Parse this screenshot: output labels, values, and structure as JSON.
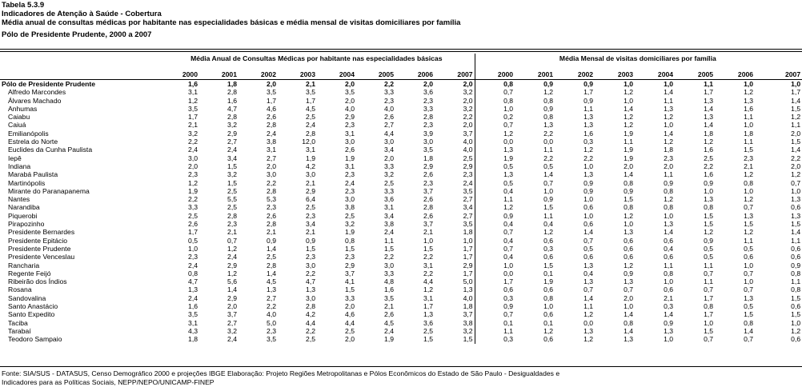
{
  "header": {
    "table_id": "Tabela 5.3.9",
    "subtitle": "Indicadores de Atenção à Saúde - Cobertura",
    "title": "Média anual de consultas médicas por habitante nas especialidades básicas e média mensal de visitas domiciliares por família",
    "region": "Pólo de Presidente Prudente, 2000 a 2007"
  },
  "table": {
    "group1": "Média Anual de Consultas Médicas por habitante nas especialidades básicas",
    "group2": "Média Mensal de visitas domiciliares por família",
    "years": [
      "2000",
      "2001",
      "2002",
      "2003",
      "2004",
      "2005",
      "2006",
      "2007"
    ],
    "rows": [
      {
        "name": "Pólo de Presidente Prudente",
        "c": [
          "1,6",
          "1,8",
          "2,0",
          "2,1",
          "2,0",
          "2,2",
          "2,0",
          "2,0"
        ],
        "v": [
          "0,8",
          "0,9",
          "0,9",
          "1,0",
          "1,0",
          "1,1",
          "1,0",
          "1,0"
        ]
      },
      {
        "name": "Alfredo Marcondes",
        "c": [
          "3,1",
          "2,8",
          "3,5",
          "3,5",
          "3,5",
          "3,3",
          "3,6",
          "3,2"
        ],
        "v": [
          "0,7",
          "1,2",
          "1,7",
          "1,2",
          "1,4",
          "1,7",
          "1,2",
          "1,7"
        ]
      },
      {
        "name": "Álvares Machado",
        "c": [
          "1,2",
          "1,6",
          "1,7",
          "1,7",
          "2,0",
          "2,3",
          "2,3",
          "2,0"
        ],
        "v": [
          "0,8",
          "0,8",
          "0,9",
          "1,0",
          "1,1",
          "1,3",
          "1,3",
          "1,4"
        ]
      },
      {
        "name": "Anhumas",
        "c": [
          "3,5",
          "4,7",
          "4,6",
          "4,5",
          "4,0",
          "4,0",
          "3,3",
          "3,2"
        ],
        "v": [
          "1,0",
          "0,9",
          "1,1",
          "1,4",
          "1,3",
          "1,4",
          "1,6",
          "1,5"
        ]
      },
      {
        "name": "Caiabu",
        "c": [
          "1,7",
          "2,8",
          "2,6",
          "2,5",
          "2,9",
          "2,6",
          "2,8",
          "2,2"
        ],
        "v": [
          "0,2",
          "0,8",
          "1,3",
          "1,2",
          "1,2",
          "1,3",
          "1,1",
          "1,2"
        ]
      },
      {
        "name": "Caiuá",
        "c": [
          "2,1",
          "3,2",
          "2,8",
          "2,4",
          "2,3",
          "2,7",
          "2,3",
          "2,0"
        ],
        "v": [
          "0,7",
          "1,3",
          "1,3",
          "1,2",
          "1,0",
          "1,4",
          "1,0",
          "1,1"
        ]
      },
      {
        "name": "Emilianópolis",
        "c": [
          "3,2",
          "2,9",
          "2,4",
          "2,8",
          "3,1",
          "4,4",
          "3,9",
          "3,7"
        ],
        "v": [
          "1,2",
          "2,2",
          "1,6",
          "1,9",
          "1,4",
          "1,8",
          "1,8",
          "2,0"
        ]
      },
      {
        "name": "Estrela do Norte",
        "c": [
          "2,2",
          "2,7",
          "3,8",
          "12,0",
          "3,0",
          "3,0",
          "3,0",
          "4,0"
        ],
        "v": [
          "0,0",
          "0,0",
          "0,3",
          "1,1",
          "1,2",
          "1,2",
          "1,1",
          "1,5"
        ]
      },
      {
        "name": "Euclides da Cunha Paulista",
        "c": [
          "2,4",
          "2,4",
          "3,1",
          "3,1",
          "2,6",
          "3,4",
          "3,5",
          "4,0"
        ],
        "v": [
          "1,3",
          "1,1",
          "1,2",
          "1,9",
          "1,8",
          "1,6",
          "1,5",
          "1,4"
        ]
      },
      {
        "name": "Iepê",
        "c": [
          "3,0",
          "3,4",
          "2,7",
          "1,9",
          "1,9",
          "2,0",
          "1,8",
          "2,5"
        ],
        "v": [
          "1,9",
          "2,2",
          "2,2",
          "1,9",
          "2,3",
          "2,5",
          "2,3",
          "2,2"
        ]
      },
      {
        "name": "Indiana",
        "c": [
          "2,0",
          "1,5",
          "2,0",
          "4,2",
          "3,1",
          "3,3",
          "2,9",
          "2,9"
        ],
        "v": [
          "0,5",
          "0,5",
          "1,0",
          "2,0",
          "2,0",
          "2,2",
          "2,1",
          "2,0"
        ]
      },
      {
        "name": "Marabá Paulista",
        "c": [
          "2,3",
          "3,2",
          "3,0",
          "3,0",
          "2,3",
          "3,2",
          "2,6",
          "2,3"
        ],
        "v": [
          "1,3",
          "1,4",
          "1,3",
          "1,4",
          "1,1",
          "1,6",
          "1,2",
          "1,2"
        ]
      },
      {
        "name": "Martinópolis",
        "c": [
          "1,2",
          "1,5",
          "2,2",
          "2,1",
          "2,4",
          "2,5",
          "2,3",
          "2,4"
        ],
        "v": [
          "0,5",
          "0,7",
          "0,9",
          "0,8",
          "0,9",
          "0,9",
          "0,8",
          "0,7"
        ]
      },
      {
        "name": "Mirante do Paranapanema",
        "c": [
          "1,9",
          "2,5",
          "2,8",
          "2,9",
          "2,3",
          "3,3",
          "3,7",
          "3,5"
        ],
        "v": [
          "0,4",
          "1,0",
          "0,9",
          "0,9",
          "0,8",
          "1,0",
          "1,0",
          "1,0"
        ]
      },
      {
        "name": "Nantes",
        "c": [
          "2,2",
          "5,5",
          "5,3",
          "6,4",
          "3,0",
          "3,6",
          "2,6",
          "2,7"
        ],
        "v": [
          "1,1",
          "0,9",
          "1,0",
          "1,5",
          "1,2",
          "1,3",
          "1,2",
          "1,3"
        ]
      },
      {
        "name": "Narandiba",
        "c": [
          "3,3",
          "2,5",
          "2,3",
          "2,5",
          "3,8",
          "3,1",
          "2,8",
          "3,4"
        ],
        "v": [
          "1,2",
          "1,5",
          "0,6",
          "0,8",
          "0,8",
          "0,8",
          "0,7",
          "0,6"
        ]
      },
      {
        "name": "Piquerobi",
        "c": [
          "2,5",
          "2,8",
          "2,6",
          "2,3",
          "2,5",
          "3,4",
          "2,6",
          "2,7"
        ],
        "v": [
          "0,9",
          "1,1",
          "1,0",
          "1,2",
          "1,0",
          "1,5",
          "1,3",
          "1,3"
        ]
      },
      {
        "name": "Pirapozinho",
        "c": [
          "2,6",
          "2,3",
          "2,8",
          "3,4",
          "3,2",
          "3,8",
          "3,7",
          "3,5"
        ],
        "v": [
          "0,4",
          "0,4",
          "0,6",
          "1,0",
          "1,3",
          "1,5",
          "1,5",
          "1,5"
        ]
      },
      {
        "name": "Presidente Bernardes",
        "c": [
          "1,7",
          "2,1",
          "2,1",
          "2,1",
          "1,9",
          "2,4",
          "2,1",
          "1,8"
        ],
        "v": [
          "0,7",
          "1,2",
          "1,4",
          "1,3",
          "1,4",
          "1,2",
          "1,2",
          "1,4"
        ]
      },
      {
        "name": "Presidente Epitácio",
        "c": [
          "0,5",
          "0,7",
          "0,9",
          "0,9",
          "0,8",
          "1,1",
          "1,0",
          "1,0"
        ],
        "v": [
          "0,4",
          "0,6",
          "0,7",
          "0,6",
          "0,6",
          "0,9",
          "1,1",
          "1,1"
        ]
      },
      {
        "name": "Presidente Prudente",
        "c": [
          "1,0",
          "1,2",
          "1,4",
          "1,5",
          "1,5",
          "1,5",
          "1,5",
          "1,7"
        ],
        "v": [
          "0,7",
          "0,3",
          "0,5",
          "0,6",
          "0,4",
          "0,5",
          "0,5",
          "0,6"
        ]
      },
      {
        "name": "Presidente Venceslau",
        "c": [
          "2,3",
          "2,4",
          "2,5",
          "2,3",
          "2,3",
          "2,2",
          "2,2",
          "1,7"
        ],
        "v": [
          "0,4",
          "0,6",
          "0,6",
          "0,6",
          "0,6",
          "0,5",
          "0,6",
          "0,6"
        ]
      },
      {
        "name": "Rancharia",
        "c": [
          "2,4",
          "2,9",
          "2,8",
          "3,0",
          "2,9",
          "3,0",
          "3,1",
          "2,9"
        ],
        "v": [
          "1,0",
          "1,5",
          "1,3",
          "1,2",
          "1,1",
          "1,1",
          "1,0",
          "0,9"
        ]
      },
      {
        "name": "Regente Feijó",
        "c": [
          "0,8",
          "1,2",
          "1,4",
          "2,2",
          "3,7",
          "3,3",
          "2,2",
          "1,7"
        ],
        "v": [
          "0,0",
          "0,1",
          "0,4",
          "0,9",
          "0,8",
          "0,7",
          "0,7",
          "0,8"
        ]
      },
      {
        "name": "Ribeirão dos Índios",
        "c": [
          "4,7",
          "5,6",
          "4,5",
          "4,7",
          "4,1",
          "4,8",
          "4,4",
          "5,0"
        ],
        "v": [
          "1,7",
          "1,9",
          "1,3",
          "1,3",
          "1,0",
          "1,1",
          "1,0",
          "1,1"
        ]
      },
      {
        "name": "Rosana",
        "c": [
          "1,3",
          "1,4",
          "1,3",
          "1,3",
          "1,5",
          "1,6",
          "1,2",
          "1,3"
        ],
        "v": [
          "0,6",
          "0,6",
          "0,7",
          "0,7",
          "0,6",
          "0,7",
          "0,7",
          "0,8"
        ]
      },
      {
        "name": "Sandovalina",
        "c": [
          "2,4",
          "2,9",
          "2,7",
          "3,0",
          "3,3",
          "3,5",
          "3,1",
          "4,0"
        ],
        "v": [
          "0,3",
          "0,8",
          "1,4",
          "2,0",
          "2,1",
          "1,7",
          "1,3",
          "1,5"
        ]
      },
      {
        "name": "Santo Anastácio",
        "c": [
          "1,6",
          "2,0",
          "2,2",
          "2,8",
          "2,0",
          "2,1",
          "1,7",
          "1,8"
        ],
        "v": [
          "0,9",
          "1,0",
          "1,1",
          "1,0",
          "0,3",
          "0,8",
          "0,5",
          "0,6"
        ]
      },
      {
        "name": "Santo Expedito",
        "c": [
          "3,5",
          "3,7",
          "4,0",
          "4,2",
          "4,6",
          "2,6",
          "1,3",
          "3,7"
        ],
        "v": [
          "0,7",
          "0,6",
          "1,2",
          "1,4",
          "1,4",
          "1,7",
          "1,5",
          "1,5"
        ]
      },
      {
        "name": "Taciba",
        "c": [
          "3,1",
          "2,7",
          "5,0",
          "4,4",
          "4,4",
          "4,5",
          "3,6",
          "3,8"
        ],
        "v": [
          "0,1",
          "0,1",
          "0,0",
          "0,8",
          "0,9",
          "1,0",
          "0,8",
          "1,0"
        ]
      },
      {
        "name": "Tarabaí",
        "c": [
          "4,3",
          "3,2",
          "2,3",
          "2,2",
          "2,5",
          "2,4",
          "2,5",
          "3,2"
        ],
        "v": [
          "1,1",
          "1,2",
          "1,3",
          "1,4",
          "1,3",
          "1,5",
          "1,4",
          "1,2"
        ]
      },
      {
        "name": "Teodoro Sampaio",
        "c": [
          "1,8",
          "2,4",
          "3,5",
          "2,5",
          "2,0",
          "1,9",
          "1,5",
          "1,5"
        ],
        "v": [
          "0,3",
          "0,6",
          "1,2",
          "1,3",
          "1,0",
          "0,7",
          "0,7",
          "0,6"
        ]
      }
    ]
  },
  "footer": {
    "line1": "Fonte: SIA/SUS - DATASUS, Censo Demográfico 2000 e projeções  IBGE   Elaboração: Projeto Regiões Metropolitanas e Pólos Econômicos do Estado de São Paulo - Desigualdades e",
    "line2": "Indicadores para as Políticas Sociais, NEPP/NEPO/UNICAMP-FINEP"
  }
}
